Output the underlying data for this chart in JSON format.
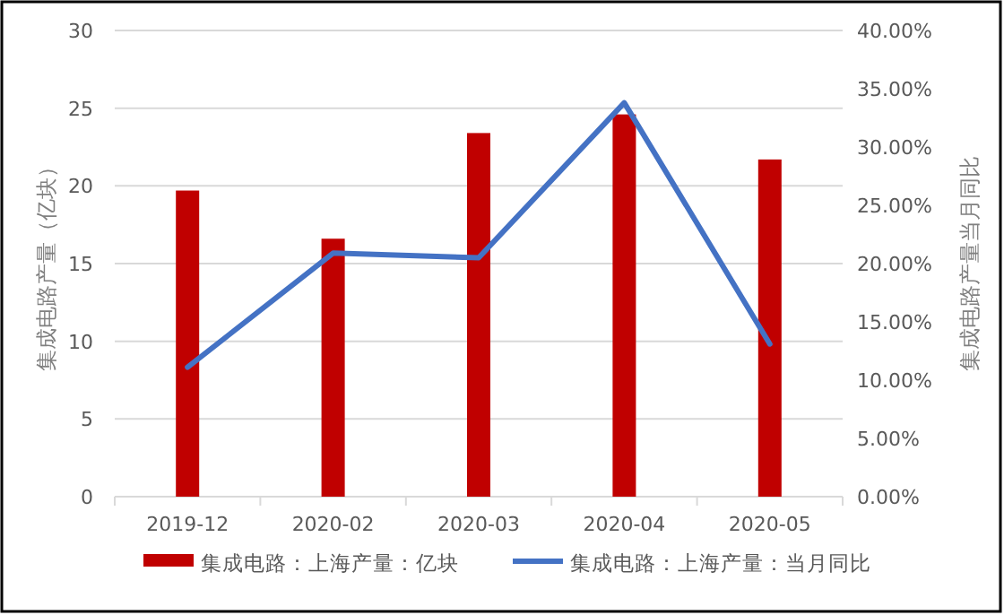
{
  "chart_data": {
    "type": "bar",
    "ylabel": "集成电路产量（亿块）",
    "y2label": "集成电路产量当月同比",
    "categories": [
      "2019-12",
      "2020-02",
      "2020-03",
      "2020-04",
      "2020-05"
    ],
    "series": [
      {
        "name": "集成电路：上海产量：亿块",
        "color": "#c00000",
        "values": [
          19.7,
          16.6,
          23.4,
          24.6,
          21.7
        ]
      },
      {
        "name": "集成电路：上海产量：当月同比",
        "type": "line",
        "axis": "y2",
        "color": "#4472c4",
        "values": [
          11.1,
          20.9,
          20.5,
          33.8,
          13.1
        ]
      }
    ],
    "ylim": [
      0,
      30
    ],
    "yticks": [
      0,
      5,
      10,
      15,
      20,
      25,
      30
    ],
    "y2lim": [
      0,
      40
    ],
    "y2ticks": [
      {
        "value": 0,
        "label": "0.00%"
      },
      {
        "value": 5,
        "label": "5.00%"
      },
      {
        "value": 10,
        "label": "10.00%"
      },
      {
        "value": 15,
        "label": "15.00%"
      },
      {
        "value": 20,
        "label": "20.00%"
      },
      {
        "value": 25,
        "label": "25.00%"
      },
      {
        "value": 30,
        "label": "30.00%"
      },
      {
        "value": 35,
        "label": "35.00%"
      },
      {
        "value": 40,
        "label": "40.00%"
      }
    ],
    "grid": "y",
    "legend": "bottom",
    "marker": "none",
    "line_style": "solid"
  }
}
